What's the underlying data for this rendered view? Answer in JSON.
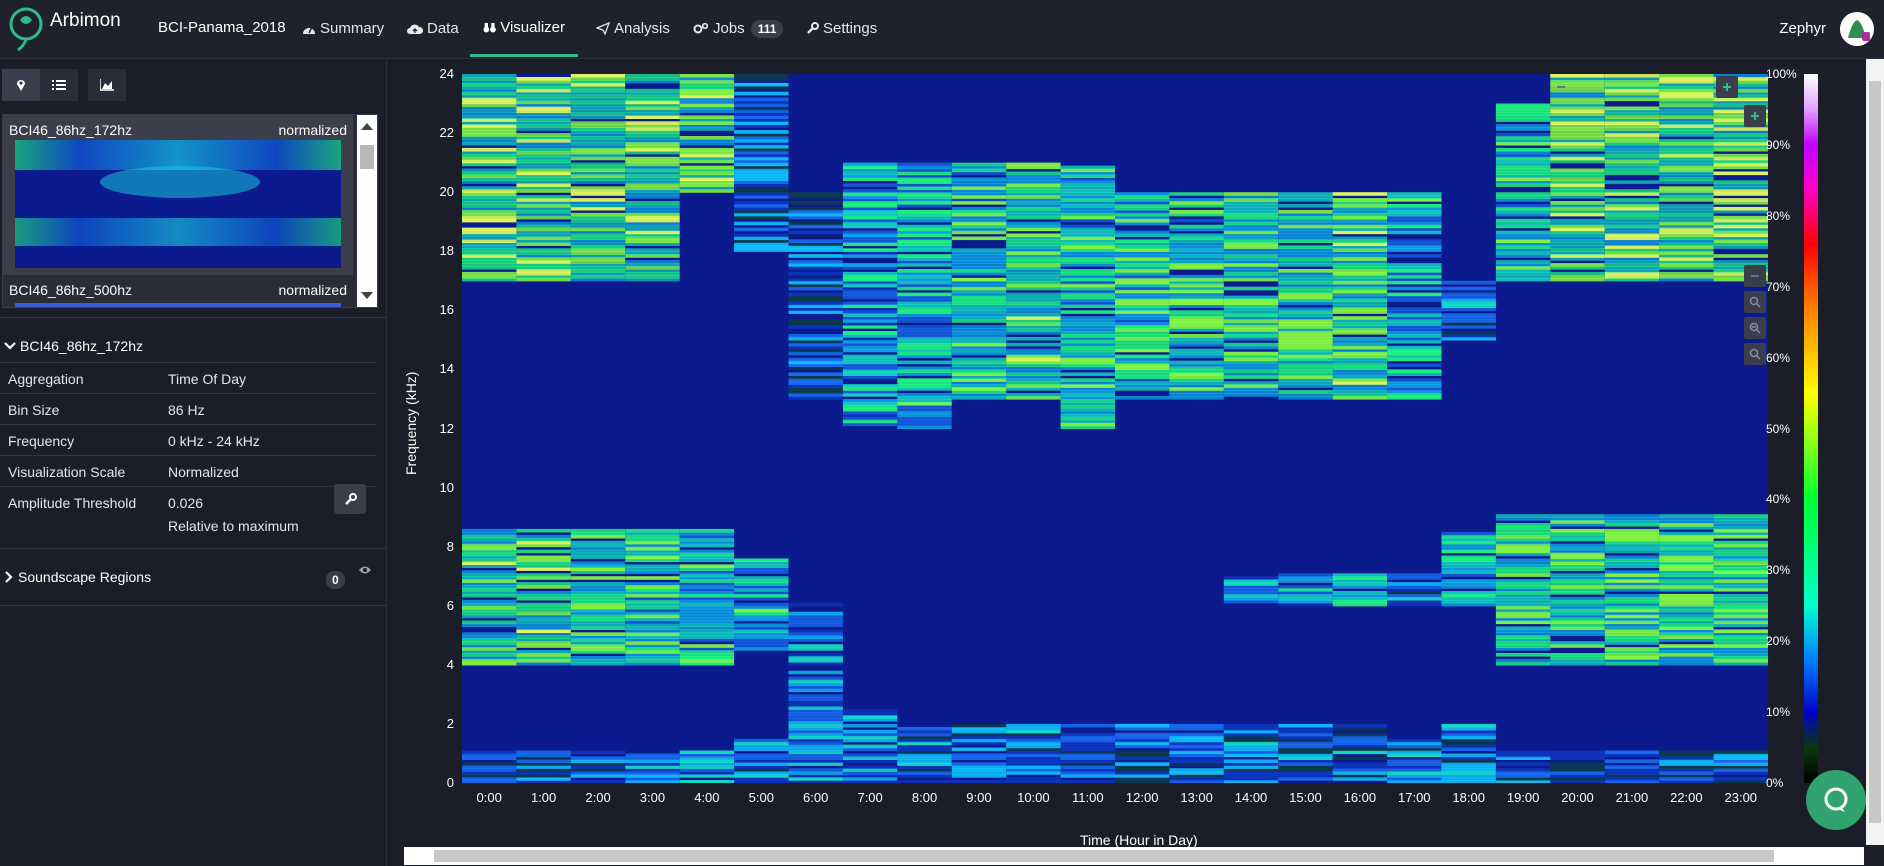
{
  "nav": {
    "brand": "Arbimon",
    "project": "BCI-Panama_2018",
    "items": [
      {
        "label": "Summary",
        "icon": "dashboard-icon"
      },
      {
        "label": "Data",
        "icon": "cloud-upload-icon"
      },
      {
        "label": "Visualizer",
        "icon": "binoculars-icon"
      },
      {
        "label": "Analysis",
        "icon": "paper-plane-icon"
      },
      {
        "label": "Jobs",
        "icon": "gears-icon",
        "badge": "111"
      },
      {
        "label": "Settings",
        "icon": "wrench-icon"
      }
    ],
    "user": "Zephyr"
  },
  "sidebar": {
    "list": [
      {
        "name": "BCI46_86hz_172hz",
        "tag": "normalized"
      },
      {
        "name": "BCI46_86hz_500hz",
        "tag": "normalized"
      }
    ],
    "details_title": "BCI46_86hz_172hz",
    "props": [
      {
        "key": "Aggregation",
        "value": "Time Of Day"
      },
      {
        "key": "Bin Size",
        "value": "86 Hz"
      },
      {
        "key": "Frequency",
        "value": "0 kHz - 24 kHz"
      },
      {
        "key": "Visualization Scale",
        "value": "Normalized"
      },
      {
        "key": "Amplitude Threshold",
        "value": "0.026",
        "value2": "Relative to maximum"
      }
    ],
    "regions_title": "Soundscape Regions",
    "regions_count": "0"
  },
  "chart_data": {
    "type": "heatmap",
    "ylabel": "Frequency (kHz)",
    "xlabel": "Time (Hour in Day)",
    "x_ticks": [
      "0:00",
      "1:00",
      "2:00",
      "3:00",
      "4:00",
      "5:00",
      "6:00",
      "7:00",
      "8:00",
      "9:00",
      "10:00",
      "11:00",
      "12:00",
      "13:00",
      "14:00",
      "15:00",
      "16:00",
      "17:00",
      "18:00",
      "19:00",
      "20:00",
      "21:00",
      "22:00",
      "23:00"
    ],
    "y_ticks": [
      "24",
      "22",
      "20",
      "18",
      "16",
      "14",
      "12",
      "10",
      "8",
      "6",
      "4",
      "2",
      "0"
    ],
    "ylim": [
      0,
      24
    ],
    "colorbar_ticks": [
      "100%",
      "90%",
      "80%",
      "70%",
      "60%",
      "50%",
      "40%",
      "30%",
      "20%",
      "10%",
      "0%"
    ],
    "bands_description_note": "",
    "activity": [
      {
        "hour": 0,
        "bands": [
          [
            0,
            1,
            0.12
          ],
          [
            4,
            8.5,
            0.4
          ],
          [
            17,
            24,
            0.45
          ]
        ]
      },
      {
        "hour": 1,
        "bands": [
          [
            0,
            1,
            0.12
          ],
          [
            4,
            8.5,
            0.42
          ],
          [
            17,
            24,
            0.45
          ]
        ]
      },
      {
        "hour": 2,
        "bands": [
          [
            0,
            1,
            0.12
          ],
          [
            4,
            8.5,
            0.38
          ],
          [
            17,
            24,
            0.45
          ]
        ]
      },
      {
        "hour": 3,
        "bands": [
          [
            0,
            1,
            0.15
          ],
          [
            4,
            8.5,
            0.36
          ],
          [
            17,
            24,
            0.45
          ]
        ]
      },
      {
        "hour": 4,
        "bands": [
          [
            0,
            1,
            0.18
          ],
          [
            4,
            8.5,
            0.33
          ],
          [
            20,
            24,
            0.4
          ]
        ]
      },
      {
        "hour": 5,
        "bands": [
          [
            0,
            1.5,
            0.18
          ],
          [
            4.5,
            7.5,
            0.3
          ],
          [
            18,
            24,
            0.1
          ]
        ]
      },
      {
        "hour": 6,
        "bands": [
          [
            0,
            6,
            0.22
          ],
          [
            13,
            20,
            0.08
          ]
        ]
      },
      {
        "hour": 7,
        "bands": [
          [
            0,
            2.5,
            0.2
          ],
          [
            12,
            21,
            0.25
          ]
        ]
      },
      {
        "hour": 8,
        "bands": [
          [
            0,
            2,
            0.15
          ],
          [
            12,
            21,
            0.3
          ]
        ]
      },
      {
        "hour": 9,
        "bands": [
          [
            0,
            2,
            0.12
          ],
          [
            13,
            21,
            0.38
          ]
        ]
      },
      {
        "hour": 10,
        "bands": [
          [
            0,
            2,
            0.12
          ],
          [
            13,
            21,
            0.4
          ]
        ]
      },
      {
        "hour": 11,
        "bands": [
          [
            0,
            2,
            0.12
          ],
          [
            12,
            21,
            0.35
          ]
        ]
      },
      {
        "hour": 12,
        "bands": [
          [
            0,
            2,
            0.12
          ],
          [
            13,
            20,
            0.35
          ]
        ]
      },
      {
        "hour": 13,
        "bands": [
          [
            0,
            2,
            0.12
          ],
          [
            13,
            20,
            0.38
          ]
        ]
      },
      {
        "hour": 14,
        "bands": [
          [
            0,
            2,
            0.12
          ],
          [
            13,
            20,
            0.38
          ],
          [
            6,
            7,
            0.2
          ]
        ]
      },
      {
        "hour": 15,
        "bands": [
          [
            0,
            2,
            0.12
          ],
          [
            13,
            20,
            0.38
          ],
          [
            6,
            7,
            0.28
          ]
        ]
      },
      {
        "hour": 16,
        "bands": [
          [
            0,
            2,
            0.12
          ],
          [
            13,
            20,
            0.4
          ],
          [
            6,
            7,
            0.3
          ]
        ]
      },
      {
        "hour": 17,
        "bands": [
          [
            0,
            1.5,
            0.15
          ],
          [
            13,
            20,
            0.3
          ],
          [
            6,
            7,
            0.15
          ]
        ]
      },
      {
        "hour": 18,
        "bands": [
          [
            0,
            2,
            0.15
          ],
          [
            6,
            8.5,
            0.3
          ],
          [
            15,
            17,
            0.15
          ]
        ]
      },
      {
        "hour": 19,
        "bands": [
          [
            0,
            1,
            0.1
          ],
          [
            4,
            9,
            0.38
          ],
          [
            17,
            23,
            0.35
          ]
        ]
      },
      {
        "hour": 20,
        "bands": [
          [
            0,
            1,
            0.1
          ],
          [
            4,
            9,
            0.38
          ],
          [
            17,
            24,
            0.45
          ]
        ]
      },
      {
        "hour": 21,
        "bands": [
          [
            0,
            1,
            0.1
          ],
          [
            4,
            9,
            0.38
          ],
          [
            17,
            24,
            0.45
          ]
        ]
      },
      {
        "hour": 22,
        "bands": [
          [
            0,
            1,
            0.1
          ],
          [
            4,
            9,
            0.38
          ],
          [
            17,
            24,
            0.45
          ]
        ]
      },
      {
        "hour": 23,
        "bands": [
          [
            0,
            1,
            0.1
          ],
          [
            4,
            9,
            0.38
          ],
          [
            17,
            24,
            0.45
          ]
        ]
      }
    ]
  },
  "colors": {
    "nav_bg": "#1f212c",
    "page_bg": "#1b1d29",
    "accent": "#2dbb8c",
    "heat_bg": "#0b1a8c"
  }
}
